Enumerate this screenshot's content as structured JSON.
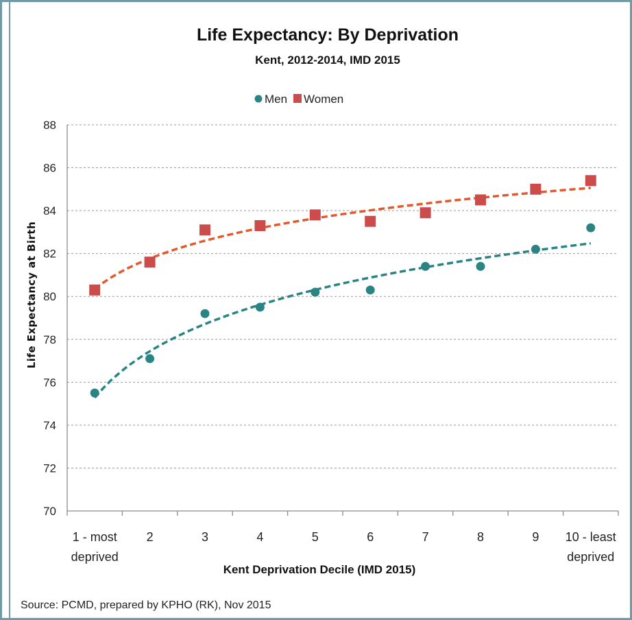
{
  "chart_data": {
    "type": "scatter",
    "title": "Life Expectancy:  By Deprivation",
    "subtitle": "Kent, 2012-2014, IMD 2015",
    "xlabel": "Kent Deprivation Decile (IMD 2015)",
    "ylabel": "Life Expectancy at Birth",
    "categories": [
      [
        "1 - most",
        "deprived"
      ],
      [
        "2"
      ],
      [
        "3"
      ],
      [
        "4"
      ],
      [
        "5"
      ],
      [
        "6"
      ],
      [
        "7"
      ],
      [
        "8"
      ],
      [
        "9"
      ],
      [
        "10 - least",
        "deprived"
      ]
    ],
    "ylim": [
      70,
      88
    ],
    "yticks": [
      70,
      72,
      74,
      76,
      78,
      80,
      82,
      84,
      86,
      88
    ],
    "grid": true,
    "legend_position": "top-center",
    "trendline": "logarithmic (dashed)",
    "series": [
      {
        "name": "Men",
        "marker": "circle",
        "color": "#2b8484",
        "values": [
          75.5,
          77.1,
          79.2,
          79.5,
          80.2,
          80.3,
          81.4,
          81.4,
          82.2,
          83.2
        ]
      },
      {
        "name": "Women",
        "marker": "square",
        "color": "#cc4c4c",
        "trend_color": "#e25a2c",
        "values": [
          80.3,
          81.6,
          83.1,
          83.3,
          83.8,
          83.5,
          83.9,
          84.5,
          85.0,
          85.4
        ]
      }
    ],
    "source": "Source: PCMD, prepared by KPHO (RK), Nov 2015"
  }
}
